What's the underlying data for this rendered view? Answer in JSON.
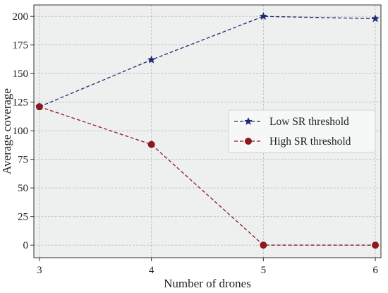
{
  "chart_data": {
    "type": "line",
    "xlabel": "Number of drones",
    "ylabel": "Average coverage",
    "x": [
      3,
      4,
      5,
      6
    ],
    "xlim": [
      2.95,
      6.05
    ],
    "ylim": [
      -11,
      210
    ],
    "xticks": [
      3,
      4,
      5,
      6
    ],
    "yticks": [
      0,
      25,
      50,
      75,
      100,
      125,
      150,
      175,
      200
    ],
    "grid": true,
    "legend_position": "center-right",
    "series": [
      {
        "name": "Low SR threshold",
        "values": [
          121,
          162,
          200,
          198
        ],
        "color": "#1f2a6e",
        "marker": "star",
        "linestyle": "dashed"
      },
      {
        "name": "High SR threshold",
        "values": [
          121,
          88,
          0,
          0
        ],
        "color": "#8b1a1f",
        "marker": "circle",
        "linestyle": "dashed"
      }
    ]
  },
  "colors": {
    "plot_background": "#eef0f0",
    "grid": "#b9bcbd",
    "axis": "#333333"
  }
}
